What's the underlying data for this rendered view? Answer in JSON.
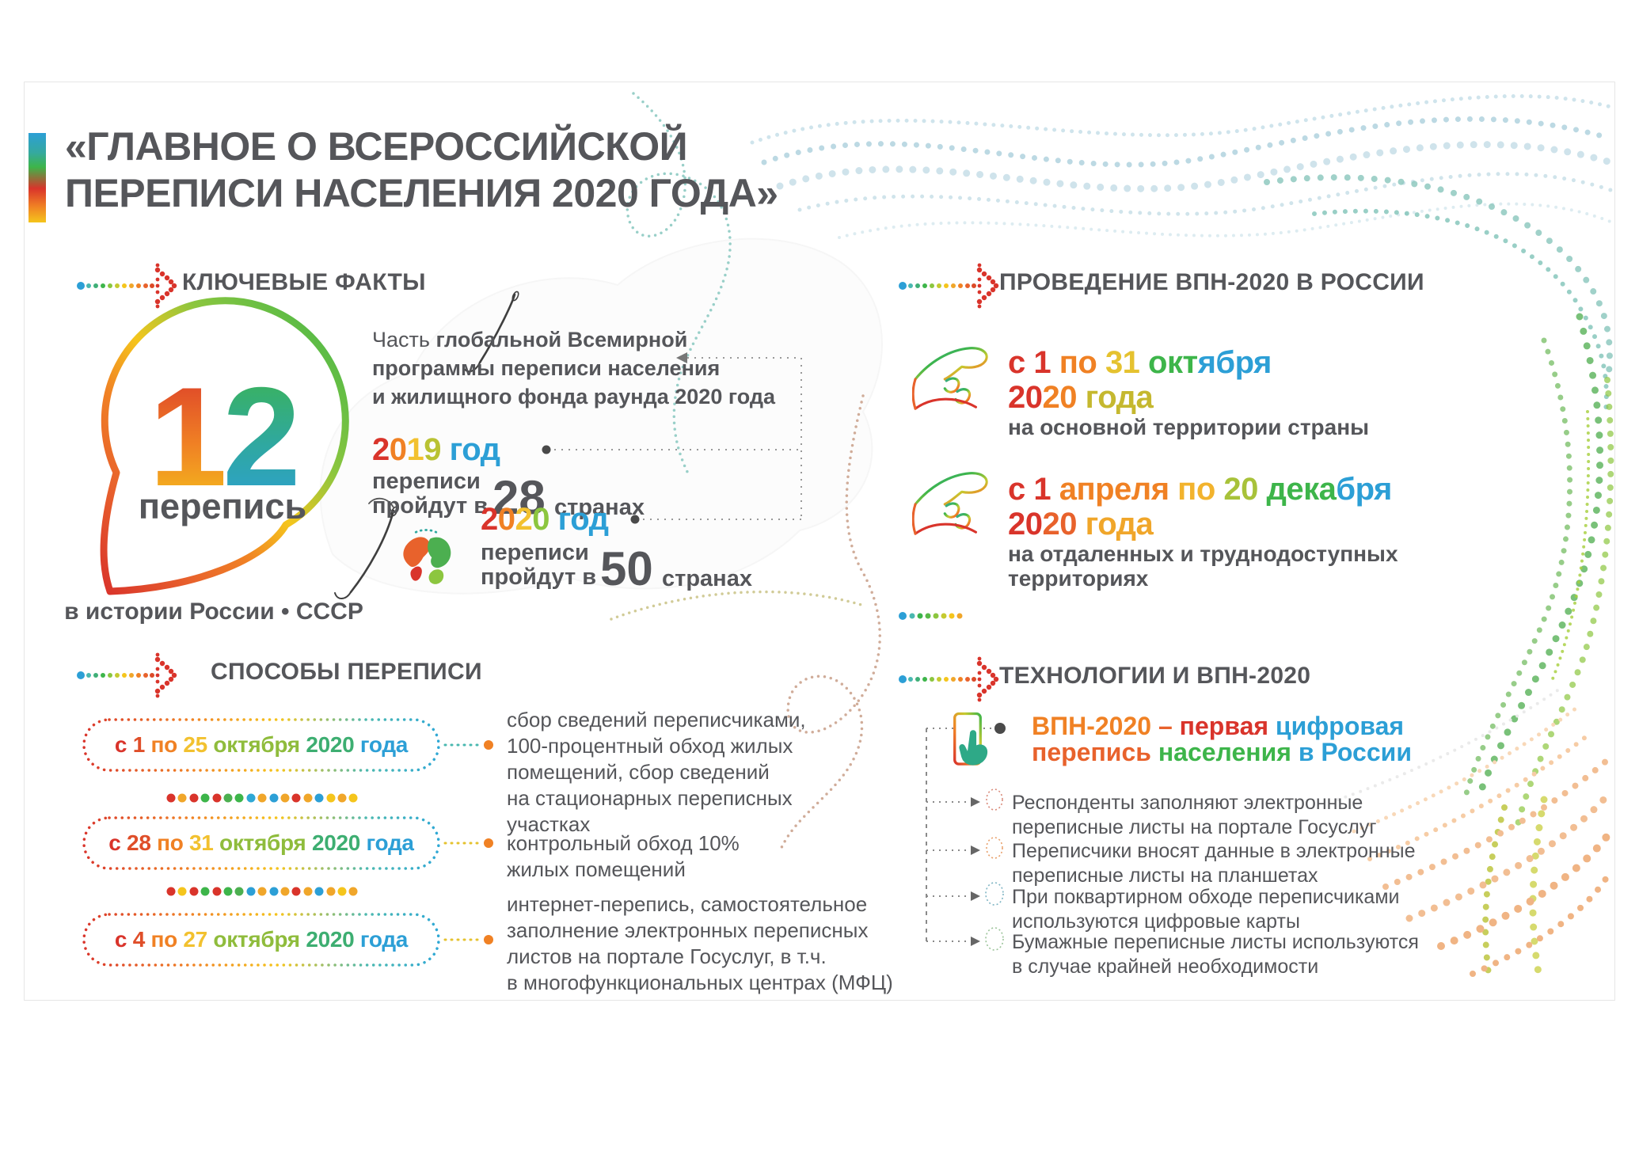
{
  "title": {
    "line1": "«ГЛАВНОЕ О ВСЕРОССИЙСКОЙ",
    "line2": "ПЕРЕПИСИ НАСЕЛЕНИЯ 2020 ГОДА»"
  },
  "palette": {
    "red": "#D9342B",
    "orange": "#F08124",
    "yellow": "#F5C51C",
    "olive": "#B9C233",
    "green": "#3DB54A",
    "teal": "#2FA8A0",
    "blue": "#2C9FD6",
    "text_gray": "#55565A"
  },
  "facts": {
    "heading": "КЛЮЧЕВЫЕ ФАКТЫ",
    "bubble": {
      "number": "12",
      "label": "перепись",
      "caption": "в истории России • СССР"
    },
    "program_lines": [
      [
        {
          "t": "Часть ",
          "b": 0
        },
        {
          "t": "глобальной Всемирной",
          "b": 1
        }
      ],
      [
        {
          "t": "программы переписи населения",
          "b": 1
        }
      ],
      [
        {
          "t": "и жилищного фонда раунда 2020 года",
          "b": 1
        }
      ]
    ],
    "year2019": {
      "year": [
        {
          "t": "2",
          "c": "#D9342B"
        },
        {
          "t": "0",
          "c": "#F08124"
        },
        {
          "t": "1",
          "c": "#F2C12F"
        },
        {
          "t": "9 ",
          "c": "#B9C233"
        },
        {
          "t": "год",
          "c": "#2C9FD6"
        }
      ],
      "line1": "переписи",
      "line2": "пройдут в",
      "number": "28",
      "suffix": "странах"
    },
    "year2020": {
      "year": [
        {
          "t": "2",
          "c": "#D9342B"
        },
        {
          "t": "0",
          "c": "#F08124"
        },
        {
          "t": "2",
          "c": "#F2C12F"
        },
        {
          "t": "0 ",
          "c": "#8CC63F"
        },
        {
          "t": "год",
          "c": "#2C9FD6"
        }
      ],
      "line1": "переписи",
      "line2": "пройдут в",
      "number": "50",
      "suffix": "странах"
    }
  },
  "methods": {
    "heading": "СПОСОБЫ ПЕРЕПИСИ",
    "pills": [
      {
        "segments": [
          {
            "t": "с ",
            "c": "#D9342B"
          },
          {
            "t": "1 ",
            "c": "#DF4E29"
          },
          {
            "t": "по ",
            "c": "#F08124"
          },
          {
            "t": "25 ",
            "c": "#F2C12F"
          },
          {
            "t": "октября ",
            "c": "#8FBC3C"
          },
          {
            "t": "2020 ",
            "c": "#3DAE71"
          },
          {
            "t": "года",
            "c": "#2C9FD6"
          }
        ]
      },
      {
        "segments": [
          {
            "t": "с ",
            "c": "#D9342B"
          },
          {
            "t": "28 ",
            "c": "#DF4E29"
          },
          {
            "t": "по ",
            "c": "#F08124"
          },
          {
            "t": "31 ",
            "c": "#F2C12F"
          },
          {
            "t": "октября ",
            "c": "#8FBC3C"
          },
          {
            "t": "2020 ",
            "c": "#3DAE71"
          },
          {
            "t": "года",
            "c": "#2C9FD6"
          }
        ]
      },
      {
        "segments": [
          {
            "t": "с ",
            "c": "#D9342B"
          },
          {
            "t": "4 ",
            "c": "#DF4E29"
          },
          {
            "t": "по ",
            "c": "#F08124"
          },
          {
            "t": "27 ",
            "c": "#F2C12F"
          },
          {
            "t": "октября ",
            "c": "#8FBC3C"
          },
          {
            "t": "2020 ",
            "c": "#3DAE71"
          },
          {
            "t": "года",
            "c": "#2C9FD6"
          }
        ]
      }
    ],
    "descriptions": [
      [
        "сбор сведений переписчиками,",
        "100-процентный обход жилых",
        "помещений, сбор сведений",
        "на стационарных переписных",
        "участках"
      ],
      [
        "контрольный обход 10%",
        "жилых помещений"
      ],
      [
        "интернет-перепись, самостоятельное",
        "заполнение электронных переписных",
        "листов на портале Госуслуг, в т.ч.",
        "в многофункциональных центрах (МФЦ)"
      ]
    ]
  },
  "conduct": {
    "heading": "ПРОВЕДЕНИЕ ВПН-2020 В РОССИИ",
    "periods": [
      {
        "date": [
          {
            "t": "с 1 ",
            "c": "#D9342B"
          },
          {
            "t": "по ",
            "c": "#F08124"
          },
          {
            "t": "31 ",
            "c": "#E5C22F"
          },
          {
            "t": "окт",
            "c": "#3DB54A"
          },
          {
            "t": "ября",
            "c": "#2C9FD6"
          }
        ],
        "year": [
          {
            "t": "20",
            "c": "#D9342B"
          },
          {
            "t": "20 ",
            "c": "#F08124"
          },
          {
            "t": "года",
            "c": "#C5B82F"
          }
        ],
        "note": [
          "на основной территории страны"
        ]
      },
      {
        "date": [
          {
            "t": "с 1 ",
            "c": "#D9342B"
          },
          {
            "t": "апреля ",
            "c": "#F08124"
          },
          {
            "t": "по ",
            "c": "#F2B32D"
          },
          {
            "t": "20 ",
            "c": "#A8C23A"
          },
          {
            "t": "дека",
            "c": "#3DB54A"
          },
          {
            "t": "бря",
            "c": "#2C9FD6"
          }
        ],
        "year": [
          {
            "t": "20",
            "c": "#D9342B"
          },
          {
            "t": "20 ",
            "c": "#E8622C"
          },
          {
            "t": "года",
            "c": "#F0A62A"
          }
        ],
        "note": [
          "на отдаленных и труднодоступных",
          "территориях"
        ]
      }
    ]
  },
  "tech": {
    "heading": "ТЕХНОЛОГИИ И ВПН-2020",
    "intro": [
      [
        {
          "t": "ВПН-2020 ",
          "c": "#F08124"
        },
        {
          "t": "– ",
          "c": "#E8622C"
        },
        {
          "t": "первая ",
          "c": "#D9342B"
        },
        {
          "t": "цифровая",
          "c": "#2C9FD6"
        }
      ],
      [
        {
          "t": "перепись ",
          "c": "#E8622C"
        },
        {
          "t": "населения ",
          "c": "#3DB54A"
        },
        {
          "t": "в России",
          "c": "#2C9FD6"
        }
      ]
    ],
    "items": [
      {
        "lines": [
          "Респонденты заполняют электронные",
          "переписные листы на портале Госуслуг"
        ]
      },
      {
        "lines": [
          "Переписчики вносят данные в электронные",
          "переписные листы на планшетах"
        ]
      },
      {
        "lines": [
          "При поквартирном обходе переписчиками",
          "используются цифровые карты"
        ]
      },
      {
        "lines": [
          "Бумажные переписные листы используются",
          "в случае крайней необходимости"
        ]
      }
    ]
  }
}
